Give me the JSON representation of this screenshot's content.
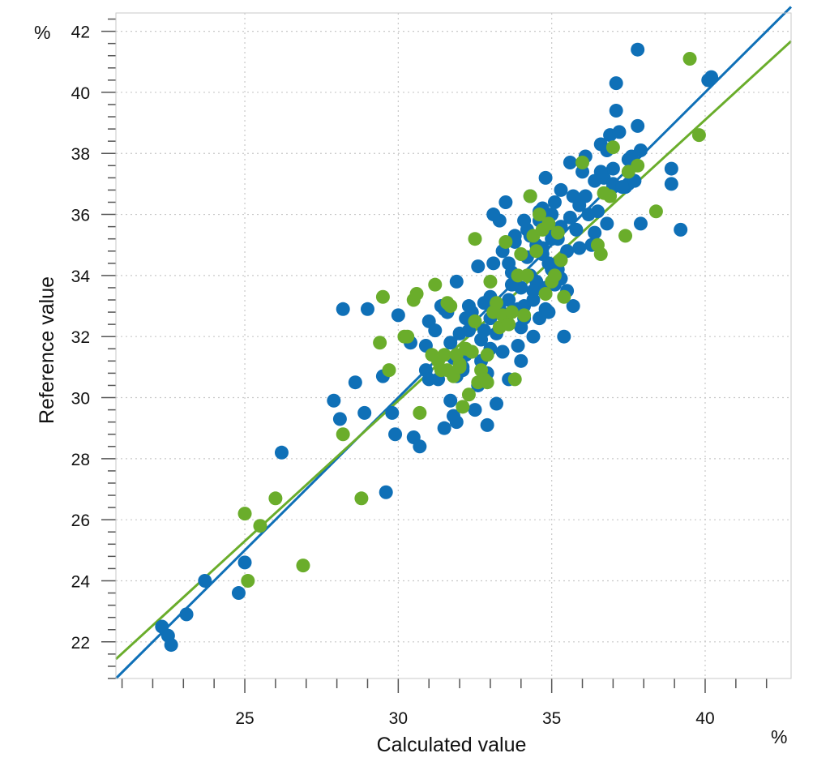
{
  "chart_data": {
    "type": "scatter",
    "xlabel": "Calculated value",
    "ylabel": "Reference value",
    "x_unit": "%",
    "y_unit": "%",
    "xlim": [
      20.8,
      42.8
    ],
    "ylim": [
      20.8,
      42.6
    ],
    "x_ticks": [
      25,
      30,
      35,
      40
    ],
    "y_ticks": [
      22,
      24,
      26,
      28,
      30,
      32,
      34,
      36,
      38,
      40,
      42
    ],
    "grid": true,
    "colors": {
      "calibration": "#0f70b7",
      "validation": "#6aad2b"
    },
    "series": [
      {
        "color": "#0f70b7",
        "fit_line": {
          "slope": 1.0,
          "intercept": 0.0
        },
        "points": [
          [
            22.3,
            22.5
          ],
          [
            22.5,
            22.2
          ],
          [
            22.6,
            21.9
          ],
          [
            23.1,
            22.9
          ],
          [
            23.7,
            24.0
          ],
          [
            24.8,
            23.6
          ],
          [
            25.0,
            24.6
          ],
          [
            26.2,
            28.2
          ],
          [
            27.9,
            29.9
          ],
          [
            28.1,
            29.3
          ],
          [
            28.2,
            32.9
          ],
          [
            28.6,
            30.5
          ],
          [
            28.9,
            29.5
          ],
          [
            29.0,
            32.9
          ],
          [
            29.5,
            30.7
          ],
          [
            29.6,
            26.9
          ],
          [
            29.8,
            29.5
          ],
          [
            29.9,
            28.8
          ],
          [
            30.0,
            32.7
          ],
          [
            30.4,
            31.8
          ],
          [
            30.5,
            28.7
          ],
          [
            30.7,
            28.4
          ],
          [
            30.9,
            30.9
          ],
          [
            30.9,
            31.7
          ],
          [
            31.0,
            32.5
          ],
          [
            31.3,
            30.6
          ],
          [
            31.5,
            29.0
          ],
          [
            31.7,
            29.9
          ],
          [
            31.8,
            29.4
          ],
          [
            31.8,
            31.3
          ],
          [
            31.9,
            29.2
          ],
          [
            31.9,
            30.7
          ],
          [
            32.0,
            32.1
          ],
          [
            32.1,
            30.9
          ],
          [
            32.2,
            31.4
          ],
          [
            32.2,
            32.6
          ],
          [
            32.3,
            33.0
          ],
          [
            32.5,
            29.6
          ],
          [
            32.6,
            30.4
          ],
          [
            32.7,
            31.2
          ],
          [
            32.8,
            32.2
          ],
          [
            32.9,
            29.1
          ],
          [
            32.9,
            30.8
          ],
          [
            33.0,
            31.6
          ],
          [
            33.0,
            33.3
          ],
          [
            33.1,
            34.4
          ],
          [
            33.2,
            32.1
          ],
          [
            33.2,
            29.8
          ],
          [
            33.3,
            35.8
          ],
          [
            33.4,
            31.5
          ],
          [
            33.5,
            32.5
          ],
          [
            33.6,
            33.2
          ],
          [
            33.6,
            30.6
          ],
          [
            33.7,
            34.1
          ],
          [
            33.8,
            35.1
          ],
          [
            33.9,
            32.9
          ],
          [
            34.0,
            33.6
          ],
          [
            34.0,
            31.2
          ],
          [
            34.1,
            32.6
          ],
          [
            34.2,
            35.5
          ],
          [
            34.3,
            34.0
          ],
          [
            34.3,
            36.6
          ],
          [
            34.4,
            32.0
          ],
          [
            34.4,
            33.2
          ],
          [
            34.5,
            33.8
          ],
          [
            34.6,
            35.8
          ],
          [
            34.7,
            34.7
          ],
          [
            34.7,
            36.2
          ],
          [
            34.8,
            37.2
          ],
          [
            34.8,
            32.9
          ],
          [
            34.9,
            34.4
          ],
          [
            34.9,
            35.6
          ],
          [
            35.0,
            36.0
          ],
          [
            35.1,
            33.7
          ],
          [
            35.2,
            35.2
          ],
          [
            35.3,
            36.8
          ],
          [
            35.4,
            32.0
          ],
          [
            35.5,
            34.8
          ],
          [
            35.6,
            37.7
          ],
          [
            35.7,
            33.0
          ],
          [
            35.8,
            35.5
          ],
          [
            35.9,
            36.3
          ],
          [
            36.0,
            37.4
          ],
          [
            36.1,
            36.6
          ],
          [
            36.3,
            35.0
          ],
          [
            36.4,
            37.1
          ],
          [
            36.5,
            36.1
          ],
          [
            36.6,
            38.3
          ],
          [
            36.7,
            37.2
          ],
          [
            36.8,
            35.7
          ],
          [
            36.9,
            38.6
          ],
          [
            37.0,
            36.9
          ],
          [
            37.0,
            37.5
          ],
          [
            37.1,
            39.4
          ],
          [
            37.1,
            40.3
          ],
          [
            37.2,
            38.7
          ],
          [
            37.4,
            36.9
          ],
          [
            37.5,
            37.0
          ],
          [
            37.6,
            37.9
          ],
          [
            37.7,
            37.1
          ],
          [
            37.8,
            38.9
          ],
          [
            37.8,
            41.4
          ],
          [
            37.9,
            38.1
          ],
          [
            37.9,
            35.7
          ],
          [
            38.9,
            37.5
          ],
          [
            38.9,
            37.0
          ],
          [
            39.2,
            35.5
          ],
          [
            40.1,
            40.4
          ],
          [
            40.2,
            40.5
          ],
          [
            31.0,
            30.6
          ],
          [
            31.4,
            33.0
          ],
          [
            31.6,
            32.8
          ],
          [
            31.7,
            31.8
          ],
          [
            32.4,
            32.8
          ],
          [
            32.6,
            34.3
          ],
          [
            32.7,
            31.9
          ],
          [
            32.8,
            33.1
          ],
          [
            33.0,
            32.6
          ],
          [
            33.1,
            36.0
          ],
          [
            33.3,
            32.9
          ],
          [
            33.5,
            36.4
          ],
          [
            33.6,
            34.4
          ],
          [
            33.8,
            35.3
          ],
          [
            33.9,
            31.7
          ],
          [
            34.0,
            32.3
          ],
          [
            34.1,
            33.0
          ],
          [
            34.2,
            34.6
          ],
          [
            34.4,
            33.5
          ],
          [
            34.5,
            35.0
          ],
          [
            34.6,
            32.6
          ],
          [
            34.7,
            34.9
          ],
          [
            34.9,
            32.8
          ],
          [
            35.0,
            35.2
          ],
          [
            35.2,
            34.2
          ],
          [
            35.3,
            33.9
          ],
          [
            35.5,
            33.5
          ],
          [
            35.6,
            35.9
          ],
          [
            35.7,
            36.6
          ],
          [
            35.9,
            34.9
          ],
          [
            36.1,
            37.9
          ],
          [
            36.2,
            36.0
          ],
          [
            36.4,
            35.4
          ],
          [
            36.6,
            37.4
          ],
          [
            36.8,
            38.1
          ],
          [
            37.0,
            37.0
          ],
          [
            37.3,
            36.9
          ],
          [
            37.5,
            37.8
          ],
          [
            31.2,
            32.2
          ],
          [
            31.5,
            32.9
          ],
          [
            31.9,
            33.8
          ],
          [
            32.1,
            31.0
          ],
          [
            32.3,
            32.2
          ],
          [
            33.4,
            34.8
          ],
          [
            33.7,
            33.7
          ],
          [
            34.1,
            35.8
          ],
          [
            34.3,
            35.3
          ],
          [
            34.6,
            36.1
          ],
          [
            34.8,
            33.6
          ],
          [
            35.0,
            34.2
          ],
          [
            35.1,
            36.4
          ],
          [
            35.3,
            35.6
          ]
        ]
      },
      {
        "color": "#6aad2b",
        "fit_line": {
          "slope": 0.92,
          "intercept": 2.3
        },
        "points": [
          [
            25.0,
            26.2
          ],
          [
            25.1,
            24.0
          ],
          [
            25.5,
            25.8
          ],
          [
            26.0,
            26.7
          ],
          [
            26.9,
            24.5
          ],
          [
            28.2,
            28.8
          ],
          [
            28.8,
            26.7
          ],
          [
            29.4,
            31.8
          ],
          [
            29.5,
            33.3
          ],
          [
            29.7,
            30.9
          ],
          [
            30.2,
            32.0
          ],
          [
            30.3,
            32.0
          ],
          [
            30.5,
            33.2
          ],
          [
            30.6,
            33.4
          ],
          [
            30.7,
            29.5
          ],
          [
            31.1,
            31.4
          ],
          [
            31.2,
            33.7
          ],
          [
            31.3,
            31.2
          ],
          [
            31.4,
            30.9
          ],
          [
            31.5,
            31.4
          ],
          [
            31.6,
            30.9
          ],
          [
            31.7,
            33.0
          ],
          [
            31.8,
            30.7
          ],
          [
            31.9,
            31.4
          ],
          [
            32.0,
            31.1
          ],
          [
            32.1,
            29.7
          ],
          [
            32.2,
            31.6
          ],
          [
            32.3,
            30.1
          ],
          [
            32.4,
            31.5
          ],
          [
            32.5,
            32.5
          ],
          [
            32.5,
            35.2
          ],
          [
            32.6,
            30.5
          ],
          [
            32.7,
            30.9
          ],
          [
            32.8,
            30.6
          ],
          [
            32.9,
            31.4
          ],
          [
            33.0,
            33.8
          ],
          [
            33.1,
            32.8
          ],
          [
            33.2,
            33.1
          ],
          [
            33.3,
            32.3
          ],
          [
            33.4,
            32.7
          ],
          [
            33.5,
            35.1
          ],
          [
            33.6,
            32.4
          ],
          [
            33.7,
            32.8
          ],
          [
            33.8,
            30.6
          ],
          [
            33.9,
            34.0
          ],
          [
            34.0,
            34.7
          ],
          [
            34.1,
            32.7
          ],
          [
            34.2,
            34.0
          ],
          [
            34.3,
            36.6
          ],
          [
            34.4,
            35.3
          ],
          [
            34.5,
            34.8
          ],
          [
            34.6,
            36.0
          ],
          [
            34.7,
            35.5
          ],
          [
            34.8,
            33.4
          ],
          [
            34.9,
            35.7
          ],
          [
            35.0,
            33.8
          ],
          [
            35.1,
            34.0
          ],
          [
            35.2,
            35.4
          ],
          [
            35.3,
            34.5
          ],
          [
            35.4,
            33.3
          ],
          [
            36.0,
            37.7
          ],
          [
            36.5,
            35.0
          ],
          [
            36.6,
            34.7
          ],
          [
            36.7,
            36.7
          ],
          [
            36.9,
            36.6
          ],
          [
            37.0,
            38.2
          ],
          [
            37.4,
            35.3
          ],
          [
            37.5,
            37.4
          ],
          [
            37.8,
            37.6
          ],
          [
            38.4,
            36.1
          ],
          [
            39.5,
            41.1
          ],
          [
            39.8,
            38.6
          ],
          [
            31.6,
            33.1
          ],
          [
            32.0,
            31.0
          ],
          [
            32.9,
            30.5
          ]
        ]
      }
    ]
  }
}
